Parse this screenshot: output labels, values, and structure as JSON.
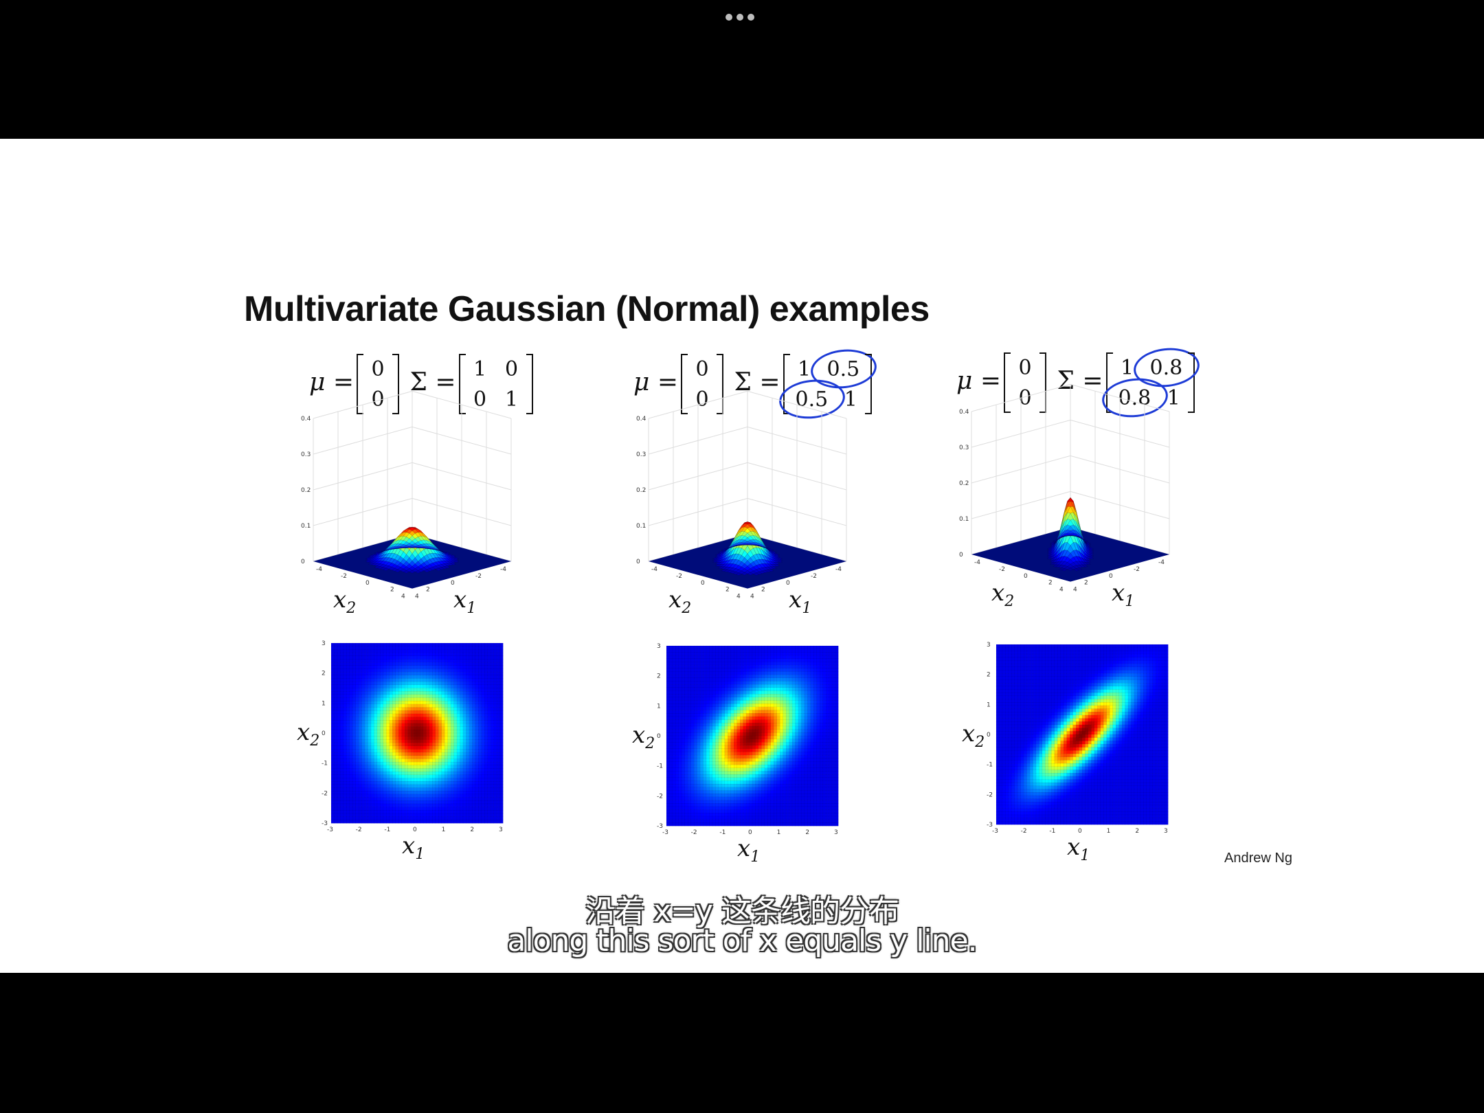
{
  "player": {
    "menu_icon": "more-horizontal-icon"
  },
  "slide": {
    "title": "Multivariate Gaussian (Normal) examples",
    "author": "Andrew Ng",
    "panels": [
      {
        "mu": [
          "0",
          "0"
        ],
        "sigma": [
          [
            "1",
            "0"
          ],
          [
            "0",
            "1"
          ]
        ],
        "rho": 0.0,
        "circled": false
      },
      {
        "mu": [
          "0",
          "0"
        ],
        "sigma": [
          [
            "1",
            "0.5"
          ],
          [
            "0.5",
            "1"
          ]
        ],
        "rho": 0.5,
        "circled": true
      },
      {
        "mu": [
          "0",
          "0"
        ],
        "sigma": [
          [
            "1",
            "0.8"
          ],
          [
            "0.8",
            "1"
          ]
        ],
        "rho": 0.8,
        "circled": true
      }
    ],
    "labels": {
      "x1": "x",
      "x1_sub": "1",
      "x2": "x",
      "x2_sub": "2",
      "mu_sym": "μ =",
      "sigma_sym": "Σ ="
    },
    "z_ticks": [
      "0",
      "0.1",
      "0.2",
      "0.3",
      "0.4"
    ],
    "xy_ticks_3d": [
      "-4",
      "-2",
      "0",
      "2",
      "4"
    ],
    "xy_ticks_2d": [
      "-3",
      "-2",
      "-1",
      "0",
      "1",
      "2",
      "3"
    ]
  },
  "subtitles": {
    "cn": "沿着 x=y 这条线的分布",
    "en": "along this sort of x equals y line."
  }
}
